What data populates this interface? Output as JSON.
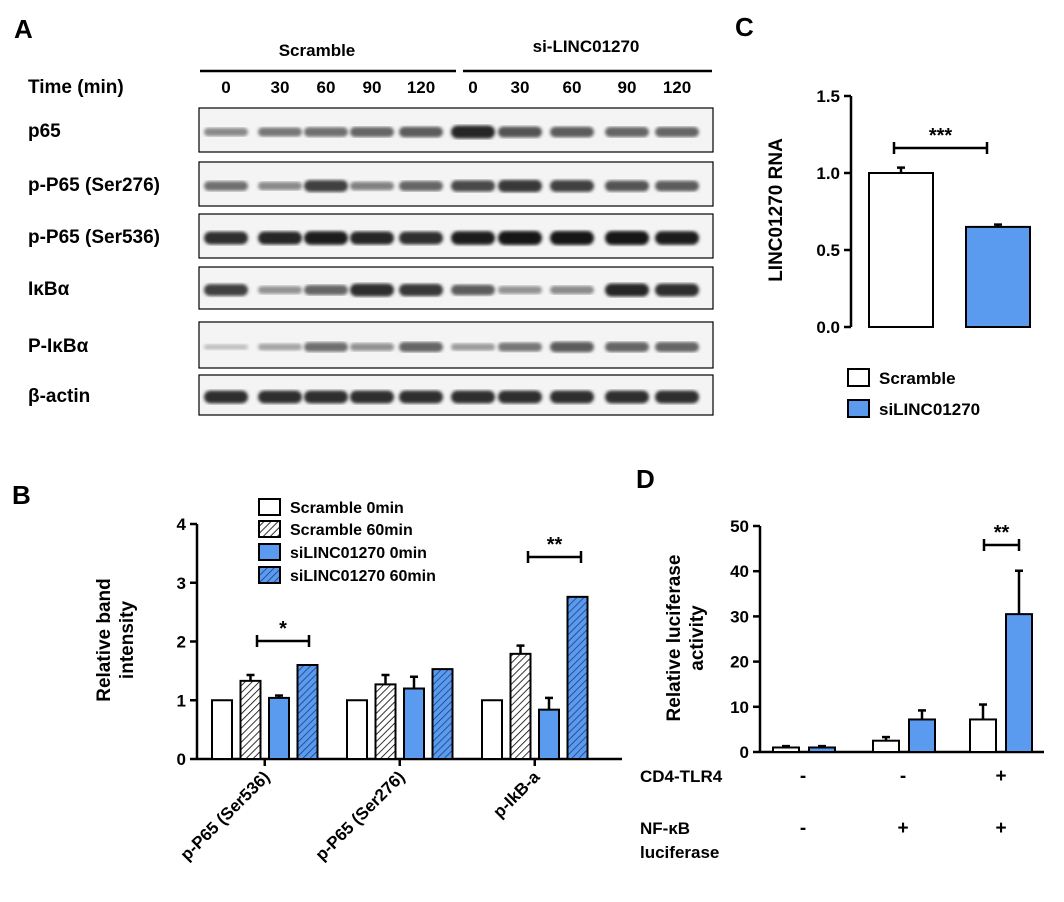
{
  "panels": {
    "A": {
      "letter": "A",
      "groups": [
        "Scramble",
        "si-LINC01270"
      ],
      "time_label": "Time (min)",
      "times": [
        "0",
        "30",
        "60",
        "90",
        "120",
        "0",
        "30",
        "60",
        "90",
        "120"
      ],
      "rows": [
        {
          "label": "p65",
          "intensity": [
            0.35,
            0.45,
            0.5,
            0.55,
            0.6,
            0.9,
            0.65,
            0.6,
            0.55,
            0.55
          ]
        },
        {
          "label": "p-P65 (Ser276)",
          "intensity": [
            0.5,
            0.35,
            0.75,
            0.4,
            0.55,
            0.7,
            0.8,
            0.75,
            0.65,
            0.6
          ]
        },
        {
          "label": "p-P65 (Ser536)",
          "intensity": [
            0.85,
            0.9,
            0.95,
            0.9,
            0.85,
            0.95,
            1.0,
            1.0,
            1.0,
            0.95
          ]
        },
        {
          "label": "IκBα",
          "intensity": [
            0.75,
            0.3,
            0.55,
            0.85,
            0.8,
            0.6,
            0.3,
            0.35,
            0.9,
            0.85
          ]
        },
        {
          "label": "P-IκBα",
          "intensity": [
            0.05,
            0.2,
            0.5,
            0.3,
            0.55,
            0.25,
            0.45,
            0.6,
            0.55,
            0.55
          ]
        },
        {
          "label": "β-actin",
          "intensity": [
            0.85,
            0.85,
            0.85,
            0.85,
            0.85,
            0.85,
            0.85,
            0.85,
            0.85,
            0.85
          ]
        }
      ]
    },
    "B": {
      "letter": "B"
    },
    "C": {
      "letter": "C"
    },
    "D": {
      "letter": "D",
      "conditions": [
        {
          "label": "CD4-TLR4",
          "values": [
            "-",
            "-",
            "+"
          ]
        },
        {
          "label": "NF-κB",
          "label2": "luciferase",
          "values": [
            "-",
            "+",
            "+"
          ]
        }
      ]
    }
  },
  "chart_data": [
    {
      "panel": "B",
      "type": "bar",
      "categories": [
        "p-P65 (Ser536)",
        "p-P65 (Ser276)",
        "p-IkB-a"
      ],
      "series": [
        {
          "name": "Scramble 0min",
          "values": [
            1.0,
            1.0,
            1.0
          ],
          "errors": [
            0,
            0,
            0
          ]
        },
        {
          "name": "Scramble 60min",
          "values": [
            1.33,
            1.27,
            1.79
          ],
          "errors": [
            0.1,
            0.16,
            0.14
          ]
        },
        {
          "name": "siLINC01270 0min",
          "values": [
            1.04,
            1.2,
            0.84
          ],
          "errors": [
            0.04,
            0.2,
            0.2
          ]
        },
        {
          "name": "siLINC01270 60min",
          "values": [
            1.6,
            1.53,
            2.76
          ],
          "errors": [
            0.1,
            0.2,
            0.48
          ]
        }
      ],
      "ylabel": "Relative band intensity",
      "ylim": [
        0,
        4
      ],
      "yticks": [
        "0",
        "1",
        "2",
        "3",
        "4"
      ],
      "significance": [
        {
          "label": "*",
          "category": 0
        },
        {
          "label": "**",
          "category": 2
        }
      ]
    },
    {
      "panel": "C",
      "type": "bar",
      "categories": [
        "Scramble",
        "siLINC01270"
      ],
      "values": [
        1.0,
        0.65
      ],
      "errors": [
        0.035,
        0.015
      ],
      "ylabel": "LINC01270 RNA",
      "ylim": [
        0,
        1.5
      ],
      "yticks": [
        "0.0",
        "0.5",
        "1.0",
        "1.5"
      ],
      "legend": [
        "Scramble",
        "siLINC01270"
      ],
      "significance": [
        {
          "label": "***"
        }
      ]
    },
    {
      "panel": "D",
      "type": "bar",
      "groups": 3,
      "series": [
        {
          "name": "Scramble",
          "values": [
            1.0,
            2.5,
            7.2
          ],
          "errors": [
            0.3,
            0.8,
            3.3
          ]
        },
        {
          "name": "siLINC01270",
          "values": [
            1.0,
            7.2,
            30.5
          ],
          "errors": [
            0.3,
            2.0,
            9.6
          ]
        }
      ],
      "ylabel": "Relative luciferase activity",
      "ylabel_lines": [
        "Relative luciferase",
        "activity"
      ],
      "ylim": [
        0,
        50
      ],
      "yticks": [
        "0",
        "10",
        "20",
        "30",
        "40",
        "50"
      ],
      "significance": [
        {
          "label": "**",
          "group": 2
        }
      ]
    }
  ],
  "colors": {
    "blue": "#5b9bef",
    "white": "#ffffff",
    "black": "#000000"
  }
}
